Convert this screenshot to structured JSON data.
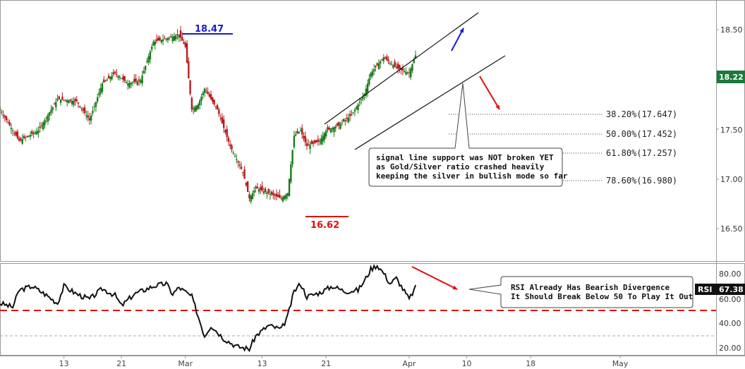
{
  "chart_data": [
    {
      "type": "candlestick",
      "panel": "price",
      "ylim": [
        16.25,
        18.75
      ],
      "yticks": [
        "18.50",
        "18.00",
        "17.50",
        "17.00",
        "16.50"
      ],
      "last_price": "18.22",
      "series_colors": {
        "up": "#1a7a1a",
        "down": "#b81c1c"
      },
      "close_path": [
        [
          0,
          17.7
        ],
        [
          3,
          17.4
        ],
        [
          6,
          17.5
        ],
        [
          9,
          17.8
        ],
        [
          12,
          17.78
        ],
        [
          14,
          17.6
        ],
        [
          16,
          17.95
        ],
        [
          18,
          18.05
        ],
        [
          20,
          17.95
        ],
        [
          22,
          17.98
        ],
        [
          24,
          18.35
        ],
        [
          26,
          18.38
        ],
        [
          28,
          18.42
        ],
        [
          29,
          18.3
        ],
        [
          30,
          17.7
        ],
        [
          31,
          17.75
        ],
        [
          32,
          17.9
        ],
        [
          34,
          17.7
        ],
        [
          36,
          17.35
        ],
        [
          38,
          17.1
        ],
        [
          39,
          16.85
        ],
        [
          40,
          16.95
        ],
        [
          42,
          16.9
        ],
        [
          44,
          16.85
        ],
        [
          45,
          16.9
        ],
        [
          46,
          17.45
        ],
        [
          47,
          17.5
        ],
        [
          48,
          17.35
        ],
        [
          50,
          17.4
        ],
        [
          51,
          17.5
        ],
        [
          53,
          17.55
        ],
        [
          55,
          17.65
        ],
        [
          57,
          17.85
        ],
        [
          58,
          18.05
        ],
        [
          60,
          18.2
        ],
        [
          61,
          18.15
        ],
        [
          62,
          18.1
        ],
        [
          64,
          18.05
        ],
        [
          65,
          18.22
        ]
      ],
      "x_index_range": [
        0,
        112
      ],
      "levels": [
        {
          "label": "18.47",
          "value": 18.47,
          "x_index": 27,
          "color": "#1a1ad0"
        },
        {
          "label": "16.62",
          "value": 16.62,
          "x_index": 45,
          "color": "#e01010"
        }
      ],
      "fibonacci": [
        {
          "label": "38.20%(17.647)",
          "value": 17.647
        },
        {
          "label": "50.00%(17.452)",
          "value": 17.452
        },
        {
          "label": "61.80%(17.257)",
          "value": 17.257
        },
        {
          "label": "78.60%(16.980)",
          "value": 16.98
        }
      ],
      "channel": {
        "upper": [
          [
            46,
            17.55
          ],
          [
            70,
            18.67
          ]
        ],
        "lower": [
          [
            51,
            17.29
          ],
          [
            74,
            18.3
          ]
        ]
      },
      "annotations": [
        "signal line support was NOT broken YET",
        "as Gold/Silver ratio crashed heavily",
        "keeping the silver in bullish mode so far"
      ]
    },
    {
      "type": "line",
      "panel": "RSI",
      "ylim": [
        15,
        85
      ],
      "yticks": [
        "80.00",
        "60.00",
        "40.00",
        "20.00"
      ],
      "indicator_label": "RSI",
      "last_value": "67.38",
      "threshold": 50,
      "reference_line": 30,
      "rsi_path": [
        [
          0,
          55
        ],
        [
          2,
          52
        ],
        [
          3,
          65
        ],
        [
          5,
          68
        ],
        [
          7,
          62
        ],
        [
          9,
          55
        ],
        [
          10,
          68
        ],
        [
          12,
          62
        ],
        [
          14,
          58
        ],
        [
          16,
          66
        ],
        [
          18,
          61
        ],
        [
          19,
          53
        ],
        [
          21,
          62
        ],
        [
          24,
          68
        ],
        [
          26,
          70
        ],
        [
          27,
          62
        ],
        [
          28,
          67
        ],
        [
          30,
          60
        ],
        [
          32,
          30
        ],
        [
          33,
          38
        ],
        [
          35,
          28
        ],
        [
          37,
          22
        ],
        [
          39,
          20
        ],
        [
          40,
          30
        ],
        [
          42,
          38
        ],
        [
          44,
          35
        ],
        [
          45,
          45
        ],
        [
          46,
          64
        ],
        [
          47,
          70
        ],
        [
          48,
          60
        ],
        [
          50,
          63
        ],
        [
          52,
          68
        ],
        [
          54,
          64
        ],
        [
          56,
          65
        ],
        [
          57,
          72
        ],
        [
          58,
          81
        ],
        [
          59,
          84
        ],
        [
          60,
          78
        ],
        [
          61,
          70
        ],
        [
          62,
          74
        ],
        [
          64,
          58
        ],
        [
          65,
          67
        ]
      ],
      "annotations": [
        "RSI Already Has Bearish Divergence",
        "It Should Break Below 50 To Play It Out"
      ]
    }
  ],
  "xaxis": {
    "ticks": [
      {
        "label": "13",
        "x_index": 10
      },
      {
        "label": "21",
        "x_index": 19
      },
      {
        "label": "Mar",
        "x_index": 29
      },
      {
        "label": "13",
        "x_index": 41
      },
      {
        "label": "21",
        "x_index": 51
      },
      {
        "label": "Apr",
        "x_index": 64
      },
      {
        "label": "10",
        "x_index": 73
      },
      {
        "label": "18",
        "x_index": 83
      },
      {
        "label": "May",
        "x_index": 97
      }
    ]
  }
}
